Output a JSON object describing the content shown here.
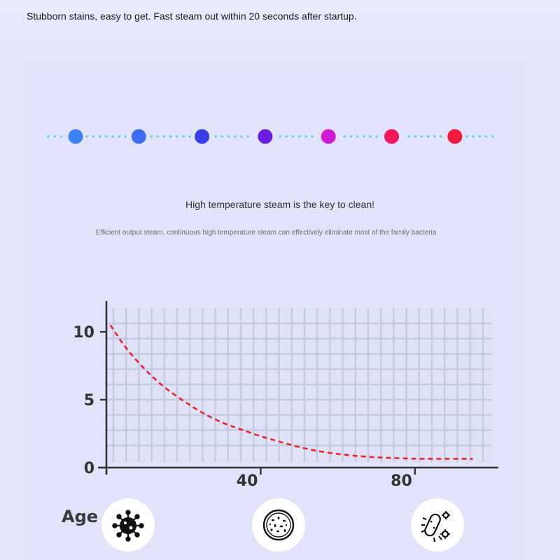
{
  "header": {
    "text": "Stubborn stains, easy to get. Fast steam out within 20 seconds after startup."
  },
  "temperature_dots": {
    "colors": [
      "#3b82f6",
      "#3d6cf0",
      "#3a3ee8",
      "#6a1fe0",
      "#cf1cd4",
      "#f1175a",
      "#f01a3a"
    ],
    "connector_color": "#5ad6cf"
  },
  "subtitle": "High temperature steam is the key to clean!",
  "caption": "Efficient output steam, continuous high temperature steam can effectively eliminate most of the family bacteria",
  "chart_data": {
    "type": "line",
    "title": "",
    "xlabel": "",
    "ylabel": "",
    "xlim": [
      0,
      100
    ],
    "ylim": [
      0,
      11.5
    ],
    "yticks": [
      0,
      5,
      10
    ],
    "ytick_labels": [
      "0",
      "5",
      "10"
    ],
    "xticks": [
      40,
      80
    ],
    "xtick_labels": [
      "40",
      "80"
    ],
    "grid": true,
    "series": [
      {
        "style": "dashed",
        "color": "#e8252a",
        "x": [
          1,
          5,
          10,
          15,
          20,
          25,
          30,
          35,
          40,
          45,
          50,
          55,
          60,
          65,
          70,
          75,
          80,
          85,
          95
        ],
        "y": [
          10.5,
          8.8,
          7.2,
          5.9,
          4.9,
          4.0,
          3.3,
          2.8,
          2.3,
          1.9,
          1.5,
          1.2,
          1.0,
          0.85,
          0.75,
          0.7,
          0.65,
          0.65,
          0.65
        ]
      }
    ]
  },
  "bottom_row": {
    "label": "Age",
    "icons": [
      "virus-icon",
      "petri-dish-icon",
      "bacteria-icon"
    ]
  }
}
